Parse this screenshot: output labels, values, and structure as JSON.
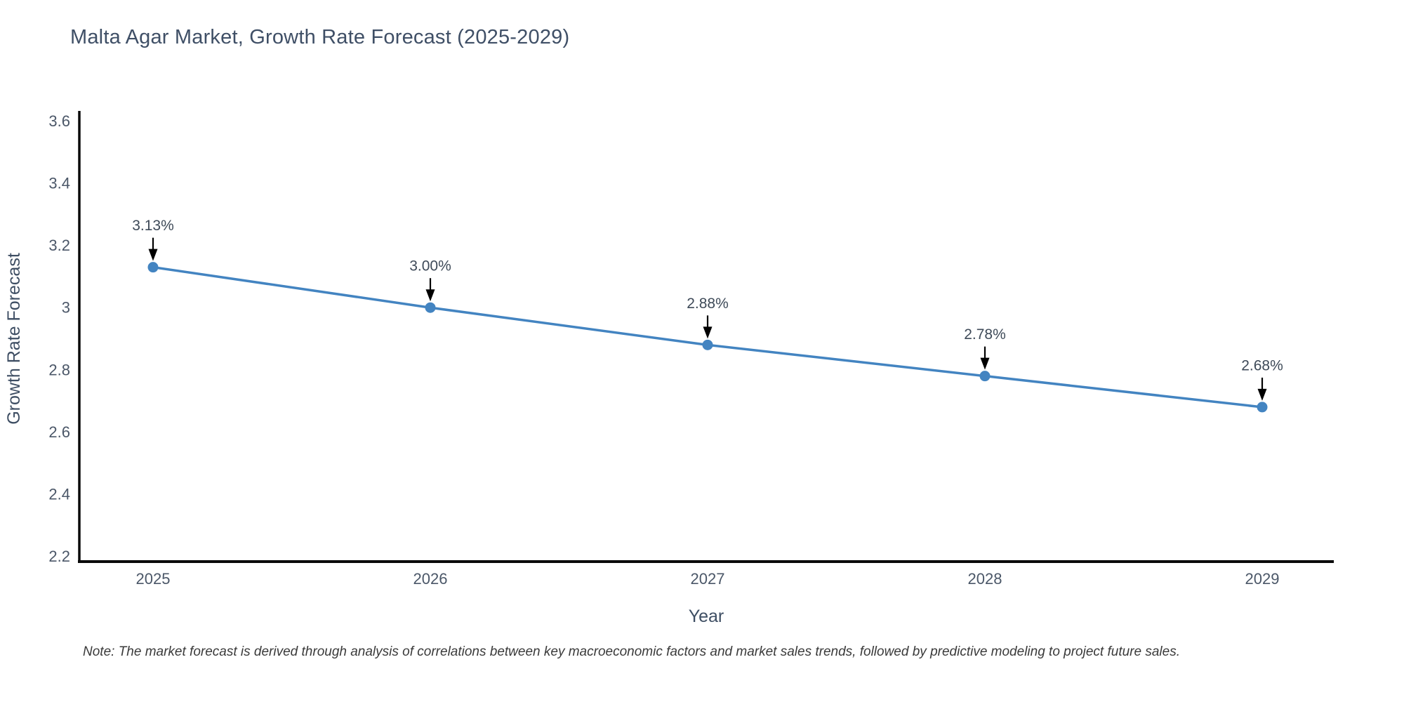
{
  "title": "Malta Agar Market, Growth Rate Forecast (2025-2029)",
  "note": "Note: The market forecast is derived through analysis of correlations between key macroeconomic factors and market sales trends, followed by predictive modeling to project future sales.",
  "chart_data": {
    "type": "line",
    "title": "Malta Agar Market, Growth Rate Forecast (2025-2029)",
    "xlabel": "Year",
    "ylabel": "Growth Rate Forecast",
    "categories": [
      "2025",
      "2026",
      "2027",
      "2028",
      "2029"
    ],
    "series": [
      {
        "name": "Growth Rate Forecast",
        "values": [
          3.13,
          3.0,
          2.88,
          2.78,
          2.68
        ]
      }
    ],
    "point_labels": [
      "3.13%",
      "3.00%",
      "2.88%",
      "2.78%",
      "2.68%"
    ],
    "y_tick_values": [
      3.6,
      3.4,
      3.2,
      3.0,
      2.8,
      2.6,
      2.4,
      2.2
    ],
    "y_tick_labels": [
      "3.6",
      "3.4",
      "3.2",
      "3",
      "2.8",
      "2.6",
      "2.4",
      "2.2"
    ],
    "ylim": [
      2.2,
      3.6
    ],
    "grid": false,
    "legend": "none",
    "annotation_arrows": true,
    "colors": {
      "line": "#4384c1",
      "marker": "#4384c1",
      "axis": "#0a0a0a",
      "tick_text": "#4b5768",
      "axis_title_text": "#3e4e63",
      "annotation_text": "#3e4a58",
      "annotation_arrow": "#000000",
      "title_text": "#3f4f66",
      "note_text": "#3a3a3a",
      "background": "#ffffff"
    }
  }
}
